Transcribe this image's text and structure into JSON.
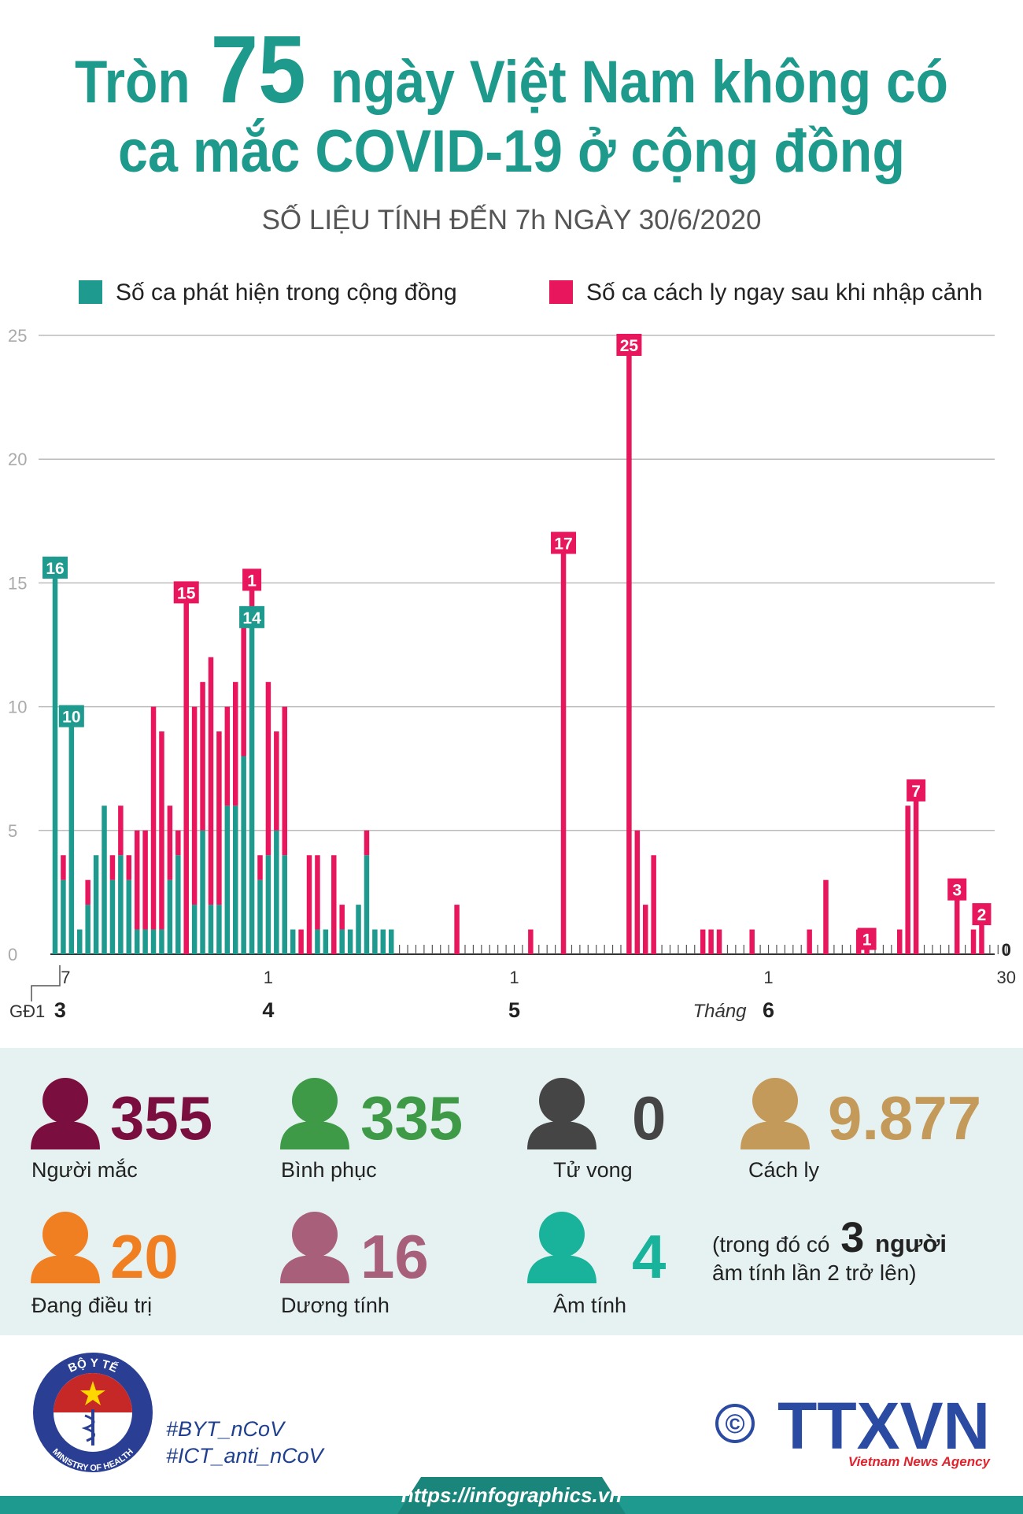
{
  "title": {
    "prefix": "Tròn",
    "number": "75",
    "line1_rest": "ngày Việt Nam không có",
    "line2": "ca mắc COVID-19 ở cộng đồng"
  },
  "subtitle": "SỐ LIỆU TÍNH ĐẾN 7h NGÀY 30/6/2020",
  "chart_data": {
    "type": "bar",
    "stacked": true,
    "grid": true,
    "ylim": [
      0,
      25
    ],
    "yticks": [
      0,
      5,
      10,
      15,
      20,
      25
    ],
    "phase_label": "GĐ1",
    "x_group_title": "Tháng",
    "x_groups": [
      "3",
      "4",
      "5",
      "6"
    ],
    "categories": [
      null,
      "7",
      null,
      null,
      null,
      null,
      null,
      null,
      null,
      null,
      null,
      null,
      null,
      null,
      null,
      null,
      null,
      null,
      null,
      null,
      null,
      null,
      null,
      null,
      null,
      null,
      "1",
      null,
      null,
      null,
      null,
      null,
      null,
      null,
      null,
      null,
      null,
      null,
      null,
      null,
      null,
      null,
      null,
      null,
      null,
      null,
      null,
      null,
      null,
      null,
      null,
      null,
      null,
      null,
      null,
      null,
      "1",
      null,
      null,
      null,
      null,
      null,
      null,
      null,
      null,
      null,
      null,
      null,
      null,
      null,
      null,
      null,
      null,
      null,
      null,
      null,
      null,
      null,
      null,
      null,
      null,
      null,
      null,
      null,
      null,
      null,
      null,
      "1",
      null,
      null,
      null,
      null,
      null,
      null,
      null,
      null,
      null,
      null,
      null,
      null,
      null,
      null,
      null,
      null,
      null,
      null,
      null,
      null,
      null,
      null,
      null,
      null,
      null,
      null,
      null,
      null,
      "30"
    ],
    "series": [
      {
        "name": "Số ca phát hiện trong cộng đồng",
        "color": "#1f9a8f",
        "values": [
          16,
          3,
          10,
          1,
          2,
          4,
          6,
          3,
          4,
          3,
          1,
          1,
          1,
          1,
          3,
          4,
          0,
          2,
          5,
          2,
          2,
          6,
          6,
          8,
          14,
          3,
          4,
          5,
          4,
          1,
          0,
          0,
          1,
          1,
          0,
          1,
          1,
          2,
          4,
          1,
          1,
          1,
          0,
          0,
          0,
          0,
          0,
          0,
          0,
          0,
          0,
          0,
          0,
          0,
          0,
          0,
          0,
          0,
          0,
          0,
          0,
          0,
          0,
          0,
          0,
          0,
          0,
          0,
          0,
          0,
          0,
          0,
          0,
          0,
          0,
          0,
          0,
          0,
          0,
          0,
          0,
          0,
          0,
          0,
          0,
          0,
          0,
          0,
          0,
          0,
          0,
          0,
          0,
          0,
          0,
          0,
          0,
          0,
          0,
          0,
          0,
          0,
          0,
          0,
          0,
          0,
          0,
          0,
          0,
          0,
          0,
          0,
          0,
          0,
          0,
          0,
          0
        ]
      },
      {
        "name": "Số ca cách ly ngay sau khi nhập cảnh",
        "color": "#e8175d",
        "values": [
          0,
          1,
          0,
          0,
          1,
          0,
          0,
          1,
          2,
          1,
          4,
          4,
          9,
          8,
          3,
          1,
          15,
          8,
          6,
          10,
          7,
          4,
          5,
          6,
          1,
          1,
          7,
          4,
          6,
          0,
          1,
          4,
          3,
          0,
          4,
          1,
          0,
          0,
          1,
          0,
          0,
          0,
          0,
          0,
          0,
          0,
          0,
          0,
          0,
          2,
          0,
          0,
          0,
          0,
          0,
          0,
          0,
          0,
          1,
          0,
          0,
          0,
          17,
          0,
          0,
          0,
          0,
          0,
          0,
          0,
          25,
          5,
          2,
          4,
          0,
          0,
          0,
          0,
          0,
          1,
          1,
          1,
          0,
          0,
          0,
          1,
          0,
          0,
          0,
          0,
          0,
          0,
          1,
          0,
          3,
          0,
          0,
          0,
          1,
          1,
          0,
          0,
          0,
          1,
          6,
          7,
          0,
          0,
          0,
          0,
          3,
          0,
          1,
          2,
          0,
          0,
          0
        ]
      }
    ]
  },
  "stats": [
    {
      "value": "355",
      "label": "Người mắc",
      "color": "#7a0f3f"
    },
    {
      "value": "335",
      "label": "Bình phục",
      "color": "#3f9a47"
    },
    {
      "value": "0",
      "label": "Tử vong",
      "color": "#454545"
    },
    {
      "value": "9.877",
      "label": "Cách ly",
      "color": "#c49a5a"
    },
    {
      "value": "20",
      "label": "Đang điều trị",
      "color": "#f07f22"
    },
    {
      "value": "16",
      "label": "Dương tính",
      "color": "#a8607a"
    },
    {
      "value": "4",
      "label": "Âm tính",
      "color": "#19b39b"
    }
  ],
  "note": {
    "prefix": "(trong đó có",
    "number": "3",
    "suffix": "người",
    "line2": "âm tính lần 2 trở lên)"
  },
  "footer": {
    "hashtags": [
      "#BYT_nCoV",
      "#ICT_anti_nCoV"
    ],
    "url": "https://infographics.vn",
    "ministry": "BỘ Y TẾ",
    "ministry_en": "MINISTRY OF HEALTH",
    "copyright": "©",
    "agency": "TTXVN",
    "agency_en": "Vietnam News Agency"
  }
}
